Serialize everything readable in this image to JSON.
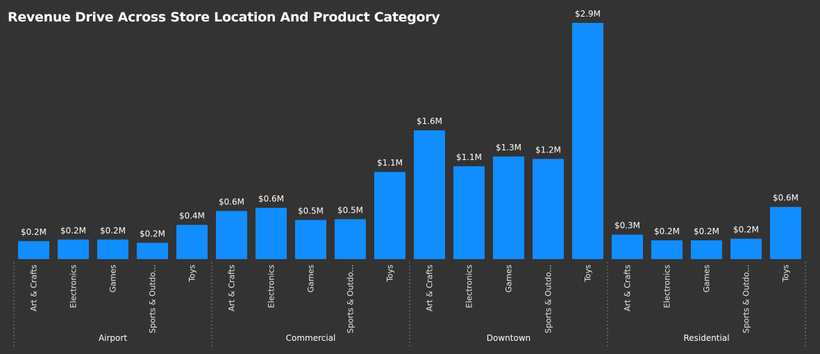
{
  "title": "Revenue Drive Across Store Location And Product Category",
  "colors": {
    "background": "#333333",
    "bar": "#118DFF",
    "text": "#FFFFFF",
    "axis_text": "#E6E6E6",
    "separator": "#8A8A8A"
  },
  "chart_data": {
    "type": "bar",
    "title": "Revenue Drive Across Store Location And Product Category",
    "xlabel": "",
    "ylabel": "",
    "value_unit": "$M",
    "ylim": [
      0,
      2.9
    ],
    "grid": false,
    "groups": [
      {
        "name": "Airport",
        "categories": [
          "Art & Crafts",
          "Electronics",
          "Games",
          "Sports & Outdo...",
          "Toys"
        ],
        "values": [
          0.22,
          0.24,
          0.24,
          0.2,
          0.42
        ],
        "labels": [
          "$0.2M",
          "$0.2M",
          "$0.2M",
          "$0.2M",
          "$0.4M"
        ]
      },
      {
        "name": "Commercial",
        "categories": [
          "Art & Crafts",
          "Electronics",
          "Games",
          "Sports & Outdo...",
          "Toys"
        ],
        "values": [
          0.59,
          0.63,
          0.48,
          0.49,
          1.07
        ],
        "labels": [
          "$0.6M",
          "$0.6M",
          "$0.5M",
          "$0.5M",
          "$1.1M"
        ]
      },
      {
        "name": "Downtown",
        "categories": [
          "Art & Crafts",
          "Electronics",
          "Games",
          "Sports & Outdo...",
          "Toys"
        ],
        "values": [
          1.58,
          1.14,
          1.26,
          1.23,
          2.9
        ],
        "labels": [
          "$1.6M",
          "$1.1M",
          "$1.3M",
          "$1.2M",
          "$2.9M"
        ]
      },
      {
        "name": "Residential",
        "categories": [
          "Art & Crafts",
          "Electronics",
          "Games",
          "Sports & Outdo...",
          "Toys"
        ],
        "values": [
          0.3,
          0.23,
          0.23,
          0.25,
          0.64
        ],
        "labels": [
          "$0.3M",
          "$0.2M",
          "$0.2M",
          "$0.2M",
          "$0.6M"
        ]
      }
    ]
  }
}
